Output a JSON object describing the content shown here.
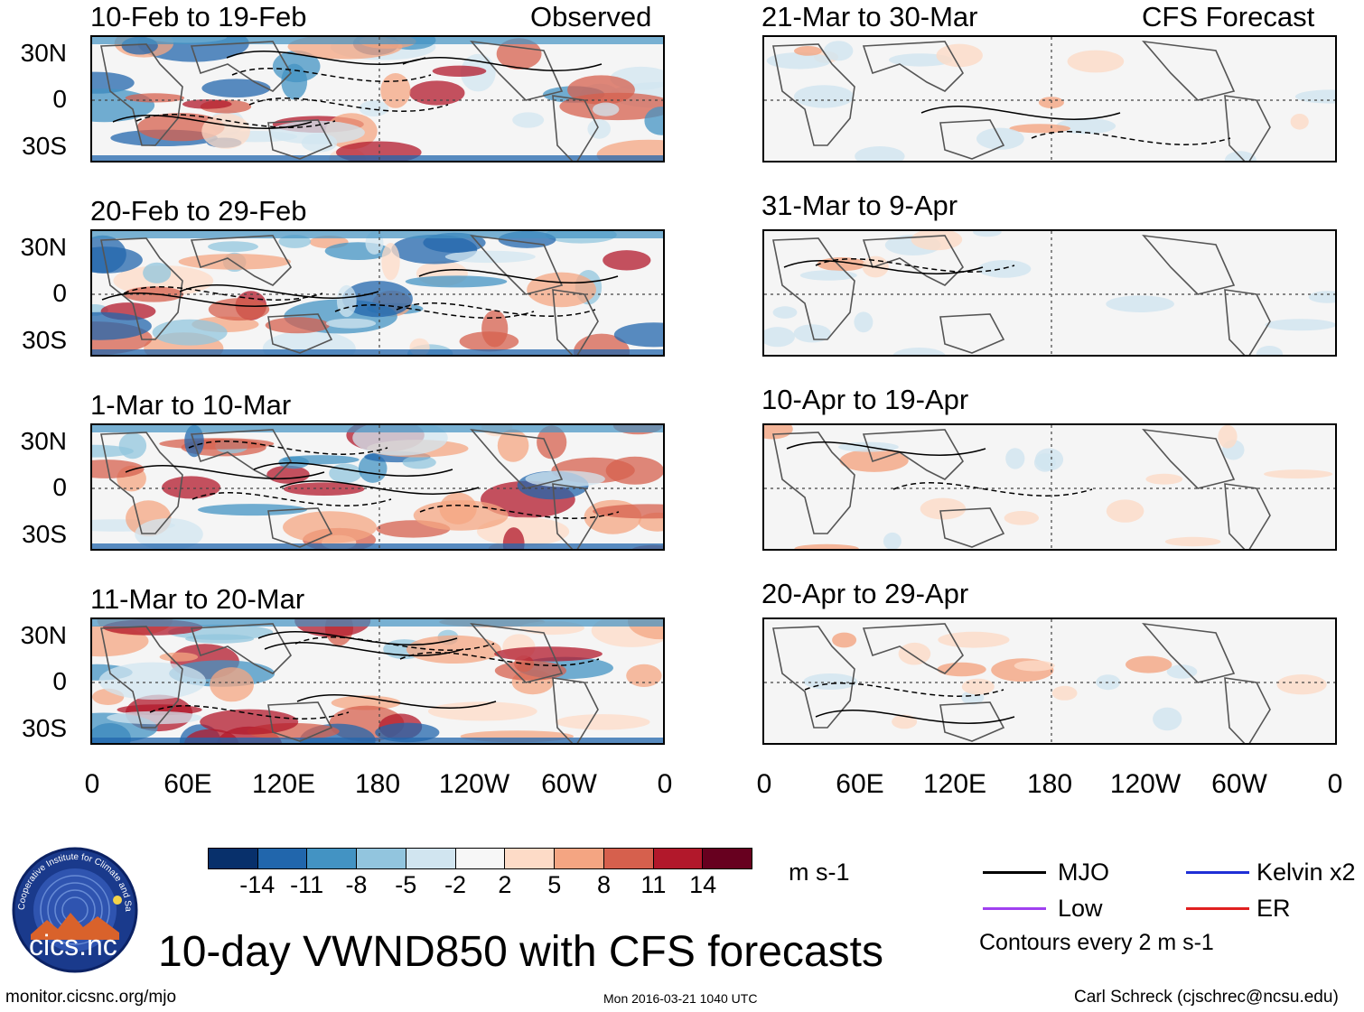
{
  "panels": {
    "obs": [
      {
        "title": "10-Feb to 19-Feb",
        "tag": "Observed"
      },
      {
        "title": "20-Feb to 29-Feb"
      },
      {
        "title": "1-Mar to 10-Mar"
      },
      {
        "title": "11-Mar to 20-Mar"
      }
    ],
    "fcst": [
      {
        "title": "21-Mar to 30-Mar",
        "tag": "CFS Forecast"
      },
      {
        "title": "31-Mar to 9-Apr"
      },
      {
        "title": "10-Apr to 19-Apr"
      },
      {
        "title": "20-Apr to 29-Apr"
      }
    ]
  },
  "lat_labels": [
    "30N",
    "0",
    "30S"
  ],
  "lon_labels": [
    "0",
    "60E",
    "120E",
    "180",
    "120W",
    "60W",
    "0"
  ],
  "colorbar": {
    "colors": [
      "#08306b",
      "#2166ac",
      "#4393c3",
      "#92c5de",
      "#d1e5f0",
      "#f7f7f7",
      "#fddbc7",
      "#f4a582",
      "#d6604d",
      "#b2182b",
      "#67001f"
    ],
    "labels": [
      "-14",
      "-11",
      "-8",
      "-5",
      "-2",
      "2",
      "5",
      "8",
      "11",
      "14"
    ],
    "units": "m s-1"
  },
  "legend": {
    "items": [
      {
        "label": "MJO",
        "color": "#000000"
      },
      {
        "label": "Kelvin x2",
        "color": "#1f2fd6"
      },
      {
        "label": "Low",
        "color": "#a040f0"
      },
      {
        "label": "ER",
        "color": "#e02020"
      }
    ],
    "note": "Contours every 2 m s-1"
  },
  "main_title": "10-day VWND850 with CFS forecasts",
  "logo_text": "cics.nc",
  "logo_ring": "Cooperative Institute for Climate and Satellites",
  "footer": {
    "left": "monitor.cicsnc.org/mjo",
    "center": "Mon 2016-03-21 1040 UTC",
    "right": "Carl Schreck (cjschrec@ncsu.edu)"
  }
}
